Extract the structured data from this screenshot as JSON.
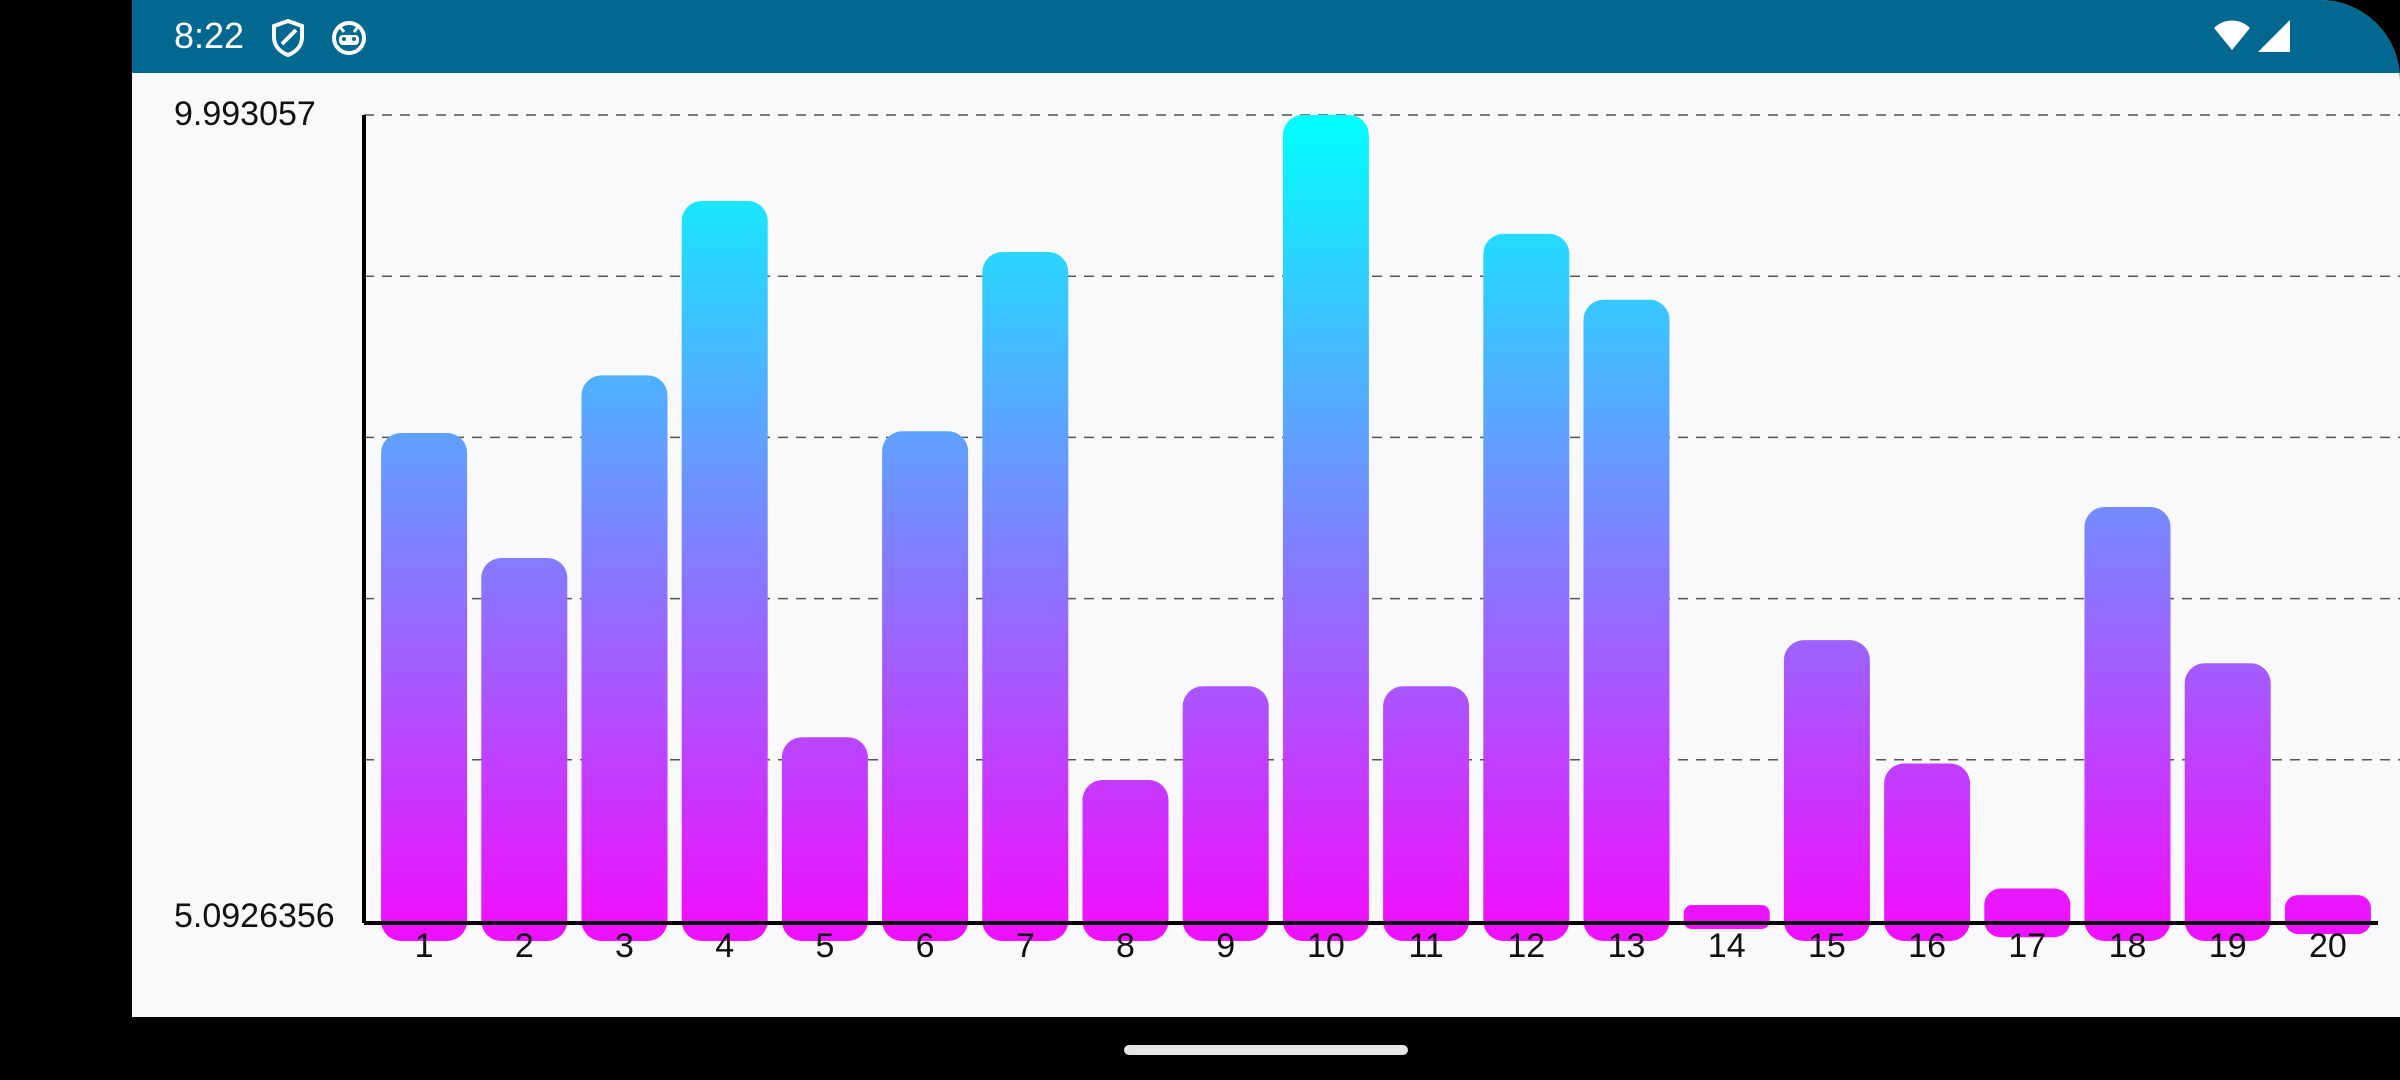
{
  "status_bar": {
    "time": "8:22",
    "icons": [
      "shield-icon",
      "android-icon",
      "wifi-icon",
      "cell-signal-icon"
    ],
    "background": "#02688f"
  },
  "chart_data": {
    "type": "bar",
    "title": "",
    "xlabel": "",
    "ylabel": "",
    "categories": [
      "1",
      "2",
      "3",
      "4",
      "5",
      "6",
      "7",
      "8",
      "9",
      "10",
      "11",
      "12",
      "13",
      "14",
      "15",
      "16",
      "17",
      "18",
      "19",
      "20"
    ],
    "values": [
      8.06,
      7.3,
      8.41,
      9.47,
      6.21,
      8.07,
      9.16,
      5.95,
      6.52,
      9.993057,
      6.52,
      9.27,
      8.87,
      5.19,
      6.8,
      6.05,
      5.29,
      7.61,
      6.66,
      5.25
    ],
    "ylim": [
      5.0926356,
      9.993057
    ],
    "y_tick_labels": [
      "9.993057",
      "5.0926356"
    ],
    "grid": "horizontal-dashed",
    "gradient": {
      "top": "#00ffff",
      "bottom": "#ee11ff"
    }
  }
}
